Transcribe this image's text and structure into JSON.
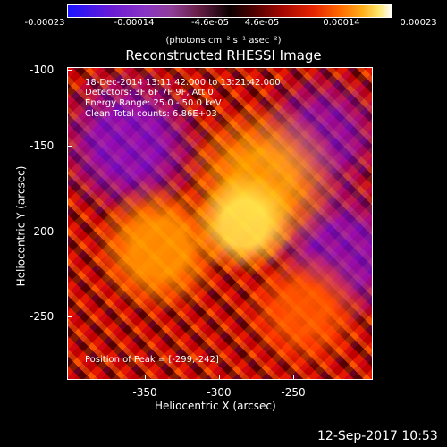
{
  "colorbar": {
    "ticks": [
      "-0.00023",
      "-0.00014",
      "-4.6e-05",
      "4.6e-05",
      "0.00014",
      "0.00023"
    ],
    "units": "(photons cm⁻² s⁻¹ asec⁻²)",
    "colors": [
      "#1a14ff",
      "#8a34c4",
      "#000000",
      "#a20700",
      "#ff6a00",
      "#ffffff"
    ]
  },
  "title": "Reconstructed RHESSI Image",
  "info_lines": [
    "18-Dec-2014 13:11:42.000 to 13:21:42.000",
    "Detectors: 3F 6F 7F 9F, Att 0",
    "Energy Range: 25.0 - 50.0 keV",
    "Clean    Total counts: 6.86E+03"
  ],
  "peak_text": "Position of Peak = [-299,-242]",
  "axes": {
    "x_label": "Heliocentric X (arcsec)",
    "y_label": "Heliocentric Y (arcsec)",
    "x_ticks": [
      "-350",
      "-300",
      "-250"
    ],
    "y_ticks": [
      "-100",
      "-150",
      "-200",
      "-250"
    ]
  },
  "timestamp": "12-Sep-2017 10:53"
}
